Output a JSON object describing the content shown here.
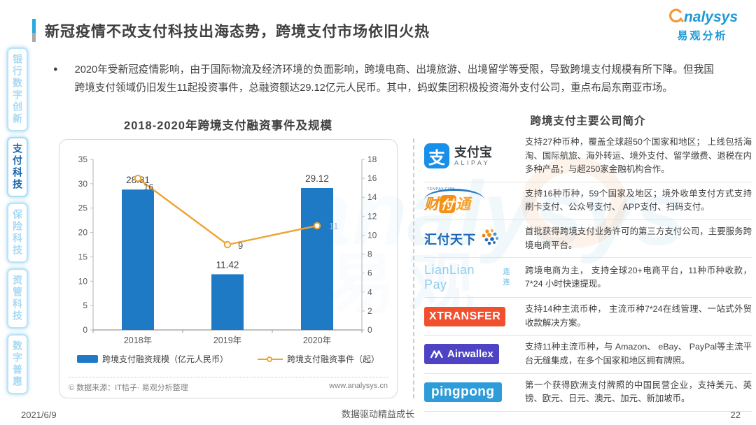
{
  "header": {
    "title": "新冠疫情不改支付科技出海态势，跨境支付市场依旧火热",
    "logo_en": "nalysys",
    "logo_cn": "易观分析"
  },
  "sidebar": {
    "items": [
      "银行数字创新",
      "支付科技",
      "保险科技",
      "资管科技",
      "数字普惠"
    ],
    "active_index": 1
  },
  "intro": {
    "bullet": "●",
    "text": "2020年受新冠疫情影响，由于国际物流及经济环境的负面影响，跨境电商、出境旅游、出境留学等受限，导致跨境支付规模有所下降。但我国跨境支付领域仍旧发生11起投资事件，总融资额达29.12亿元人民币。其中，蚂蚁集团积极投资海外支付公司，重点布局东南亚市场。"
  },
  "chart_data": {
    "type": "bar",
    "title": "2018-2020年跨境支付融资事件及规模",
    "categories": [
      "2018年",
      "2019年",
      "2020年"
    ],
    "series": [
      {
        "name": "跨境支付融资规模（亿元人民币）",
        "type": "bar",
        "axis": "left",
        "values": [
          28.81,
          11.42,
          29.12
        ],
        "color": "#1f7ac5"
      },
      {
        "name": "跨境支付融资事件（起）",
        "type": "line",
        "axis": "right",
        "values": [
          16,
          9,
          11
        ],
        "color": "#efa32f",
        "label_offsets": [
          [
            8,
            17
          ],
          [
            15,
            6
          ],
          [
            17,
            5
          ]
        ],
        "label_colors": [
          "#595959",
          "#595959",
          "#9dbfde"
        ]
      }
    ],
    "left_axis": {
      "min": 0,
      "max": 35,
      "step": 5
    },
    "right_axis": {
      "min": 0,
      "max": 18,
      "step": 2
    },
    "grid": false,
    "legend_position": "bottom",
    "source": "© 数据来源：IT桔子· 易观分析整理",
    "source_url": "www.analysys.cn"
  },
  "companies": {
    "title": "跨境支付主要公司简介",
    "rows": [
      {
        "logo": {
          "icon_char": "支",
          "cn": "支付宝",
          "en": "ALIPAY"
        },
        "desc": "支持27种币种，覆盖全球超50个国家和地区； 上线包括海淘、国际航旅、海外转运、境外支付、留学缴费、退税在内多种产品；与超250家金融机构合作。"
      },
      {
        "logo": {
          "domain": "TENPAY.COM",
          "c1": "财",
          "c2": "付",
          "c3": "通"
        },
        "desc": "支持16种币种，59个国家及地区；境外收单支付方式支持刷卡支付、公众号支付、 APP支付、扫码支付。"
      },
      {
        "logo": {
          "text": "汇付天下"
        },
        "desc": "首批获得跨境支付业务许可的第三方支付公司，主要服务跨境电商平台。"
      },
      {
        "logo": {
          "text": "LianLian Pay",
          "suffix": "连连"
        },
        "desc": "跨境电商为主， 支持全球20+电商平台，11种币种收款，7*24 小时快速提现。"
      },
      {
        "logo": {
          "text": "XTRANSFER"
        },
        "desc": "支持14种主流币种， 主流币种7*24在线管理、一站式外贸收款解决方案。"
      },
      {
        "logo": {
          "text": "Airwallex"
        },
        "desc": "支持11种主流币种，与 Amazon、 eBay、 PayPal等主流平台无缝集成，在多个国家和地区拥有牌照。"
      },
      {
        "logo": {
          "text": "pingpong"
        },
        "desc": "第一个获得欧洲支付牌照的中国民营企业，支持美元、英镑、欧元、日元、澳元、加元、新加坡币。"
      }
    ]
  },
  "footer": {
    "date": "2021/6/9",
    "slogan": "数据驱动精益成长",
    "page": "22"
  },
  "colors": {
    "accent_blue": "#2aa9e0",
    "bar_blue": "#1f7ac5",
    "line_orange": "#efa32f",
    "alipay_blue": "#1690e9",
    "tenpay_orange": "#f39114",
    "huifu_blue": "#1a66b4",
    "lianlian_blue": "#8fcdee",
    "xtransfer_red": "#f1502f",
    "airwallex_purple": "#4d43c4",
    "pingpong_blue": "#2e9cd8",
    "sidebar_active": "#1565ad",
    "sidebar_inactive": "#a9d9f2",
    "logo_blue": "#1c9ad6",
    "logo_orange": "#f29b38"
  }
}
